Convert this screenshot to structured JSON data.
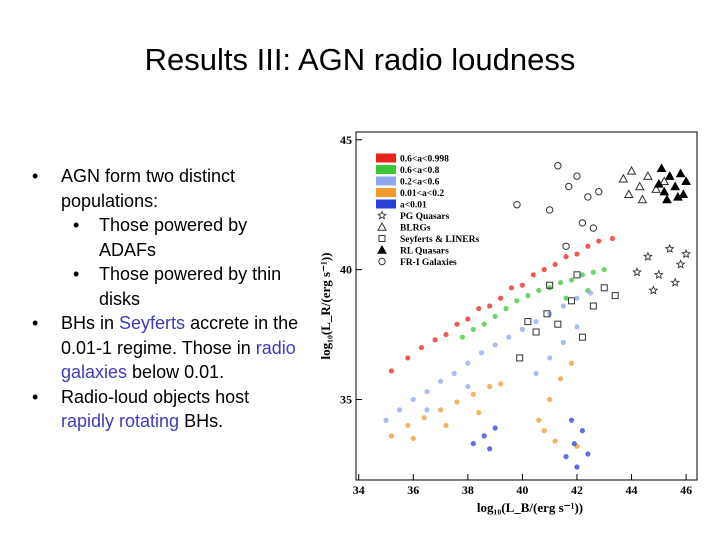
{
  "slide": {
    "title": "Results III: AGN radio loudness",
    "bullets": [
      {
        "text": "AGN form two distinct populations:",
        "sub": [
          "Those powered by ADAFs",
          "Those powered by thin disks"
        ]
      },
      {
        "parts": [
          "BHs in ",
          "Seyferts",
          " accrete in the 0.01-1 regime. Those in ",
          "radio galaxies",
          " below 0.01."
        ]
      },
      {
        "parts": [
          "Radio-loud objects host ",
          "rapidly rotating",
          " BHs."
        ]
      }
    ]
  },
  "chart_data": {
    "type": "scatter",
    "xlabel": "log₁₀(L_B/(erg s⁻¹))",
    "ylabel": "log₁₀(L_R/(erg s⁻¹))",
    "xlim": [
      33.9,
      46.4
    ],
    "ylim": [
      31.9,
      45.3
    ],
    "xticks": [
      34,
      36,
      38,
      40,
      42,
      44,
      46
    ],
    "yticks": [
      35,
      40,
      45
    ],
    "series": [
      {
        "name": "0.6<a<0.998",
        "color": "#e8231e",
        "marker": "dot",
        "x": [
          35.2,
          35.8,
          36.3,
          36.8,
          37.2,
          37.6,
          38.0,
          38.4,
          38.8,
          39.2,
          39.6,
          40.0,
          40.4,
          40.8,
          41.2,
          41.6,
          42.0,
          42.4,
          42.8,
          43.3
        ],
        "values": [
          36.1,
          36.6,
          37.0,
          37.3,
          37.5,
          37.9,
          38.1,
          38.5,
          38.6,
          38.9,
          39.3,
          39.4,
          39.8,
          40.0,
          40.2,
          40.5,
          40.6,
          40.9,
          41.1,
          41.2
        ]
      },
      {
        "name": "0.6<a<0.8",
        "color": "#3ec43a",
        "marker": "dot",
        "x": [
          37.8,
          38.2,
          38.6,
          39.0,
          39.4,
          39.8,
          40.2,
          40.6,
          41.0,
          41.4,
          41.8,
          42.2,
          42.6,
          43.0,
          42.4,
          41.6
        ],
        "values": [
          37.4,
          37.7,
          37.9,
          38.2,
          38.5,
          38.8,
          39.0,
          39.2,
          39.3,
          39.5,
          39.6,
          39.8,
          39.9,
          40.0,
          39.2,
          38.9
        ]
      },
      {
        "name": "0.2<a<0.6",
        "color": "#8fa6f0",
        "marker": "dot",
        "x": [
          35.0,
          35.5,
          36.0,
          36.5,
          37.0,
          37.5,
          38.0,
          38.5,
          39.0,
          39.5,
          40.0,
          40.5,
          41.0,
          41.5,
          42.0,
          42.5,
          40.5,
          41.0,
          41.5,
          42.0,
          36.5,
          38.0
        ],
        "values": [
          34.2,
          34.6,
          35.0,
          35.3,
          35.7,
          36.0,
          36.4,
          36.8,
          37.1,
          37.4,
          37.7,
          38.0,
          38.3,
          38.6,
          38.9,
          39.1,
          36.0,
          36.6,
          37.2,
          37.8,
          34.6,
          35.5
        ]
      },
      {
        "name": "0.01<a<0.2",
        "color": "#f29a2e",
        "marker": "dot",
        "x": [
          35.2,
          35.8,
          36.4,
          37.0,
          37.6,
          38.2,
          38.8,
          39.2,
          36.0,
          37.2,
          38.4,
          40.6,
          41.0,
          41.4,
          41.8,
          41.2,
          40.8,
          42.0
        ],
        "values": [
          33.6,
          34.0,
          34.3,
          34.6,
          34.9,
          35.2,
          35.5,
          35.6,
          33.5,
          34.0,
          34.5,
          34.2,
          35.0,
          35.8,
          36.4,
          33.4,
          33.8,
          33.2
        ]
      },
      {
        "name": "a<0.01",
        "color": "#2a3fd6",
        "marker": "dot",
        "x": [
          38.2,
          38.6,
          39.0,
          38.8,
          41.6,
          41.9,
          42.2,
          42.0,
          41.8,
          42.4
        ],
        "values": [
          33.3,
          33.6,
          33.9,
          33.1,
          32.8,
          33.3,
          33.8,
          32.4,
          34.2,
          32.9
        ]
      },
      {
        "name": "PG Quasars",
        "color": "#333333",
        "marker": "star",
        "x": [
          44.6,
          45.0,
          45.4,
          45.8,
          44.8,
          45.6,
          44.2,
          46.0
        ],
        "values": [
          40.5,
          39.8,
          40.8,
          40.2,
          39.2,
          39.5,
          39.9,
          40.6
        ]
      },
      {
        "name": "BLRGs",
        "color": "#333333",
        "marker": "triangle-open",
        "x": [
          43.7,
          44.0,
          44.3,
          44.6,
          44.9,
          44.4,
          43.9,
          45.2
        ],
        "values": [
          43.5,
          43.8,
          43.2,
          43.6,
          43.1,
          42.7,
          42.9,
          43.4
        ]
      },
      {
        "name": "Seyferts & LINERs",
        "color": "#333333",
        "marker": "square-open",
        "x": [
          40.5,
          40.9,
          41.3,
          41.8,
          42.2,
          42.6,
          43.0,
          39.9,
          40.2,
          41.0,
          42.0,
          43.4
        ],
        "values": [
          37.6,
          38.3,
          37.9,
          38.8,
          37.4,
          38.6,
          39.3,
          36.6,
          38.0,
          39.4,
          39.8,
          39.0
        ]
      },
      {
        "name": "RL Quasars",
        "color": "#000000",
        "marker": "triangle-filled",
        "x": [
          45.0,
          45.2,
          45.4,
          45.6,
          45.8,
          46.0,
          45.3,
          45.7,
          45.1,
          45.9
        ],
        "values": [
          43.3,
          43.0,
          43.6,
          43.2,
          43.7,
          43.4,
          42.7,
          42.8,
          43.9,
          42.9
        ]
      },
      {
        "name": "FR-I Galaxies",
        "color": "#333333",
        "marker": "circle-open",
        "x": [
          41.3,
          41.7,
          42.0,
          42.4,
          42.8,
          41.0,
          42.2,
          41.6,
          39.8,
          42.6
        ],
        "values": [
          44.0,
          43.2,
          43.6,
          42.8,
          43.0,
          42.3,
          41.8,
          40.9,
          42.5,
          41.6
        ]
      }
    ]
  }
}
